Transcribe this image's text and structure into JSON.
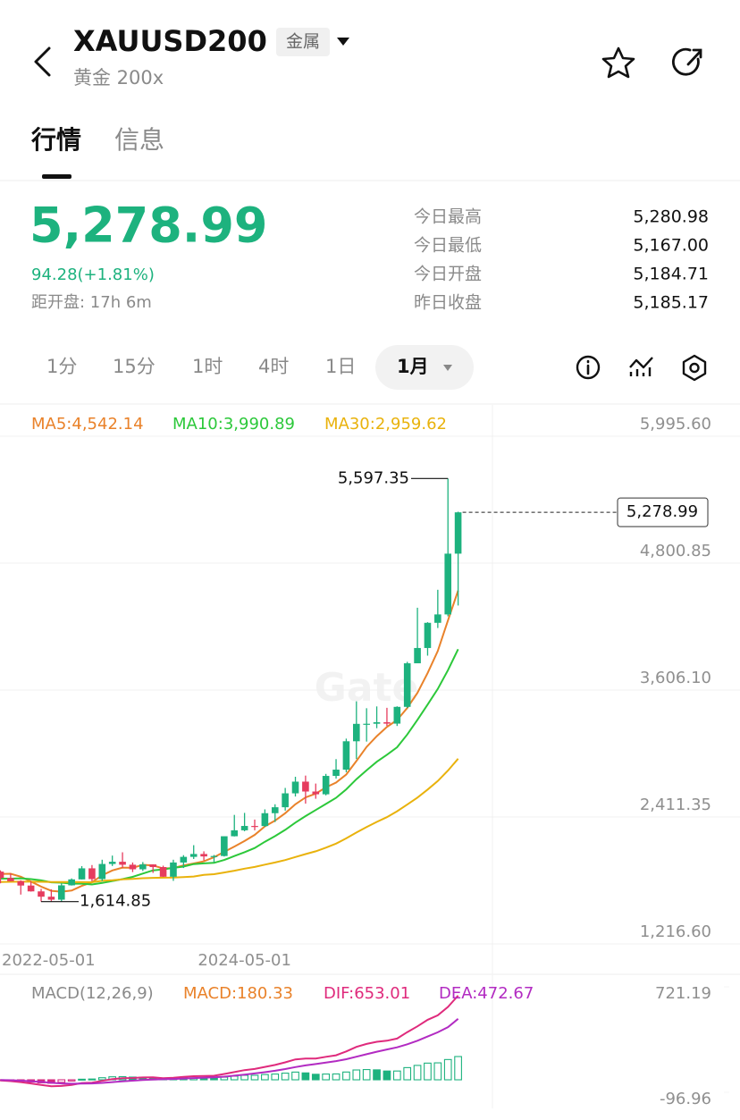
{
  "header": {
    "symbol": "XAUUSD200",
    "tag": "金属",
    "subtitle": "黄金 200x"
  },
  "tabs": [
    "行情",
    "信息"
  ],
  "quote": {
    "price": "5,278.99",
    "change": "94.28(+1.81%)",
    "countdown": "距开盘: 17h 6m",
    "stats": [
      {
        "label": "今日最高",
        "value": "5,280.98"
      },
      {
        "label": "今日最低",
        "value": "5,167.00"
      },
      {
        "label": "今日开盘",
        "value": "5,184.71"
      },
      {
        "label": "昨日收盘",
        "value": "5,185.17"
      }
    ]
  },
  "intervals": [
    "1分",
    "15分",
    "1时",
    "4时",
    "1日",
    "1月"
  ],
  "chart_data": [
    {
      "type": "candlestick",
      "watermark": "Gate",
      "grid": true,
      "up_color": "#1db27e",
      "down_color": "#e63c5e",
      "categories": [
        "2022-05-01",
        null,
        null,
        null,
        null,
        null,
        null,
        null,
        null,
        null,
        null,
        null,
        null,
        null,
        null,
        null,
        null,
        null,
        null,
        null,
        null,
        null,
        null,
        null,
        "2024-05-01",
        null,
        null,
        null,
        null,
        null,
        null,
        null,
        null,
        null,
        null,
        null,
        null,
        null,
        null,
        null,
        null,
        null,
        null,
        null,
        null,
        null
      ],
      "open": [
        1897,
        1837,
        1807,
        1766,
        1711,
        1661,
        1633,
        1768,
        1824,
        1928,
        1827,
        1969,
        1990,
        1962,
        1919,
        1965,
        1940,
        1849,
        1983,
        2036,
        2063,
        2040,
        2044,
        2230,
        2286,
        2327,
        2326,
        2447,
        2503,
        2634,
        2744,
        2651,
        2625,
        2798,
        2857,
        3124,
        3288,
        3289,
        3303,
        3290,
        3448,
        3858,
        4002,
        4239,
        4318,
        4890
      ],
      "high": [
        1909,
        1880,
        1815,
        1807,
        1735,
        1730,
        1786,
        1833,
        1949,
        1959,
        2009,
        2048,
        2079,
        1983,
        1987,
        1966,
        1953,
        2009,
        2052,
        2146,
        2088,
        2054,
        2222,
        2431,
        2450,
        2387,
        2483,
        2531,
        2685,
        2790,
        2801,
        2726,
        2817,
        2956,
        3149,
        3500,
        3435,
        3452,
        3439,
        3453,
        3872,
        4381,
        4245,
        4550,
        5597.35,
        5285
      ],
      "low": [
        1787,
        1805,
        1681,
        1709,
        1614.85,
        1617,
        1616,
        1766,
        1823,
        1805,
        1809,
        1950,
        1932,
        1893,
        1903,
        1885,
        1847,
        1810,
        1931,
        2016,
        2002,
        1984,
        2039,
        2228,
        2277,
        2286,
        2319,
        2364,
        2471,
        2604,
        2537,
        2583,
        2615,
        2773,
        2833,
        2957,
        3121,
        3247,
        3268,
        3268,
        3436,
        3860,
        3930,
        4190,
        4300,
        4402
      ],
      "close": [
        1837,
        1807,
        1766,
        1711,
        1661,
        1633,
        1768,
        1824,
        1928,
        1827,
        1969,
        1990,
        1962,
        1919,
        1965,
        1940,
        1849,
        1983,
        2036,
        2063,
        2040,
        2044,
        2230,
        2286,
        2327,
        2326,
        2447,
        2503,
        2634,
        2744,
        2651,
        2625,
        2798,
        2857,
        3124,
        3288,
        3289,
        3303,
        3290,
        3448,
        3858,
        4002,
        4239,
        4318,
        4890,
        5278.99
      ],
      "series": [
        {
          "label": "MA5:4,542.14",
          "color": "#e9822a",
          "values": [
            1875,
            1877,
            1849,
            1804,
            1756,
            1716,
            1708,
            1719,
            1763,
            1796,
            1863,
            1908,
            1935,
            1933,
            1961,
            1955,
            1927,
            1931,
            1955,
            1974,
            1994,
            2033,
            2083,
            2133,
            2185,
            2243,
            2323,
            2378,
            2447,
            2531,
            2596,
            2631,
            2690,
            2735,
            2811,
            2938,
            3071,
            3172,
            3259,
            3324,
            3438,
            3580,
            3767,
            3973,
            4261,
            4542.14
          ]
        },
        {
          "label": "MA10:3,990.89",
          "color": "#2cc83a",
          "values": [
            1832,
            1831,
            1834,
            1827,
            1815,
            1796,
            1793,
            1784,
            1784,
            1776,
            1790,
            1808,
            1827,
            1848,
            1879,
            1909,
            1918,
            1933,
            1944,
            1968,
            1975,
            1980,
            2007,
            2044,
            2080,
            2119,
            2178,
            2231,
            2290,
            2358,
            2420,
            2477,
            2534,
            2591,
            2671,
            2767,
            2851,
            2931,
            2997,
            3068,
            3188,
            3326,
            3470,
            3616,
            3793,
            3990.89
          ]
        },
        {
          "label": "MA30:2,959.62",
          "color": "#e9b20c",
          "values": [
            1800,
            1801,
            1802,
            1802,
            1801,
            1800,
            1800,
            1799,
            1798,
            1797,
            1811,
            1816,
            1824,
            1828,
            1835,
            1838,
            1840,
            1842,
            1846,
            1851,
            1866,
            1873,
            1889,
            1906,
            1925,
            1941,
            1963,
            1983,
            2006,
            2034,
            2062,
            2088,
            2123,
            2161,
            2210,
            2265,
            2316,
            2365,
            2410,
            2465,
            2528,
            2594,
            2670,
            2750,
            2848,
            2959.62
          ]
        }
      ],
      "ylim": [
        1216.6,
        5995.6
      ],
      "yticks": [
        {
          "value": 5995.6,
          "label": "5,995.60"
        },
        {
          "value": 4800.85,
          "label": "4,800.85"
        },
        {
          "value": 3606.1,
          "label": "3,606.10"
        },
        {
          "value": 2411.35,
          "label": "2,411.35"
        },
        {
          "value": 1216.6,
          "label": "1,216.60"
        }
      ],
      "high_mark": {
        "value": 5597.35,
        "label": "5,597.35"
      },
      "low_mark": {
        "value": 1614.85,
        "label": "1,614.85"
      },
      "last_price": {
        "value": 5278.99,
        "label": "5,278.99"
      }
    },
    {
      "type": "macd",
      "title": "MACD(12,26,9)",
      "series": [
        {
          "label": "MACD:180.33",
          "color": "#e9822a",
          "style": "bar",
          "up_color": "#1db27e",
          "down_color": "#d6287f",
          "values": [
            -3,
            -6.4,
            -11.5,
            -17.2,
            -23.4,
            -26.7,
            -19.8,
            -9.4,
            4.5,
            6,
            16,
            23.2,
            24.2,
            21,
            20,
            16.8,
            7.8,
            9.4,
            12.3,
            14.6,
            13.3,
            11.4,
            20.3,
            28.2,
            34.6,
            34.9,
            40.7,
            44.6,
            51.7,
            59.7,
            53.4,
            42.7,
            44.6,
            45.3,
            60.2,
            76.2,
            79.4,
            77.1,
            68.1,
            68.1,
            94.5,
            111.6,
            129.3,
            131.4,
            157.1,
            180.33
          ]
        },
        {
          "label": "DIF:653.01",
          "color": "#df2a7c",
          "style": "line",
          "values": [
            -5,
            -10,
            -18,
            -28,
            -40,
            -50,
            -48,
            -40,
            -25,
            -22,
            -8,
            5,
            12,
            14,
            18,
            19,
            12,
            16,
            22,
            28,
            30,
            31,
            45,
            60,
            75,
            84,
            100,
            115,
            135,
            158,
            165,
            165,
            178,
            190,
            220,
            255,
            278,
            295,
            303,
            320,
            370,
            415,
            465,
            500,
            565,
            653.01
          ]
        },
        {
          "label": "DEA:472.67",
          "color": "#b22bc2",
          "style": "line",
          "values": [
            -2,
            -3.6,
            -6.5,
            -10.8,
            -16.6,
            -23.3,
            -28.2,
            -30.6,
            -29.5,
            -28,
            -24,
            -18.2,
            -12.2,
            -7,
            -2,
            2.2,
            4.2,
            6.6,
            9.7,
            13.4,
            16.7,
            19.6,
            24.7,
            31.8,
            40.4,
            49.1,
            59.3,
            70.4,
            83.3,
            98.3,
            111.6,
            122.3,
            133.4,
            144.7,
            159.8,
            178.8,
            198.6,
            217.9,
            234.9,
            251.9,
            275.5,
            303.4,
            335.7,
            368.6,
            407.9,
            472.67
          ]
        }
      ],
      "ylim": [
        -96.96,
        721.19
      ],
      "yticks": [
        721.19,
        -96.96
      ]
    }
  ]
}
